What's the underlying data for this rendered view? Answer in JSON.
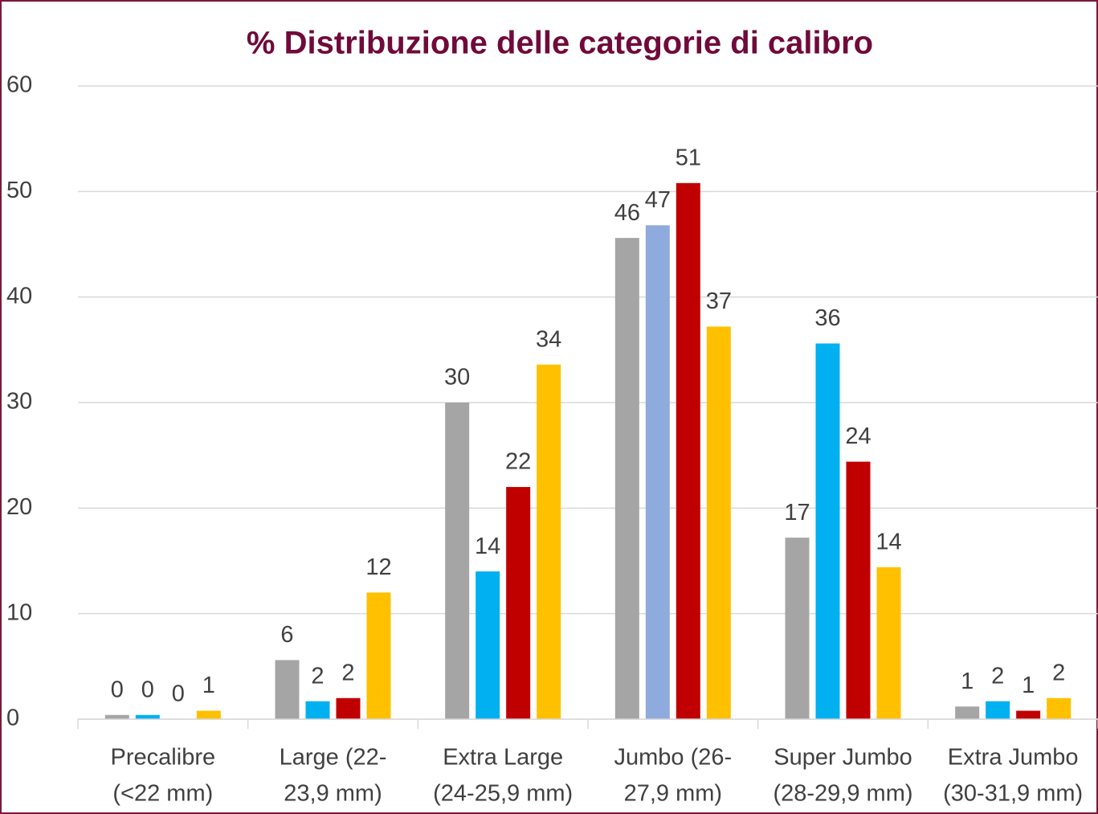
{
  "chart_data": {
    "type": "bar",
    "title": "% Distribuzione delle categorie di calibro",
    "categories": [
      [
        "Precalibre",
        "(<22 mm)"
      ],
      [
        "Large (22-",
        "23,9 mm)"
      ],
      [
        "Extra Large",
        "(24-25,9 mm)"
      ],
      [
        "Jumbo (26-",
        "27,9 mm)"
      ],
      [
        "Super Jumbo",
        "(28-29,9 mm)"
      ],
      [
        "Extra Jumbo",
        "(30-31,9 mm)"
      ]
    ],
    "series": [
      {
        "color": "#a5a5a5",
        "values": [
          0.4,
          5.6,
          30.0,
          45.6,
          17.2,
          1.2
        ],
        "value_labels": [
          "0",
          "6",
          "30",
          "46",
          "17",
          "1"
        ]
      },
      {
        "color": "#00b0f0",
        "colors": [
          "#00b0f0",
          "#00b0f0",
          "#00b0f0",
          "#8faadc",
          "#00b0f0",
          "#00b0f0"
        ],
        "values": [
          0.4,
          1.7,
          14.0,
          46.8,
          35.6,
          1.7
        ],
        "value_labels": [
          "0",
          "2",
          "14",
          "47",
          "36",
          "2"
        ]
      },
      {
        "color": "#c00000",
        "values": [
          0,
          2.0,
          22.0,
          50.8,
          24.4,
          0.8
        ],
        "value_labels": [
          "0",
          "2",
          "22",
          "51",
          "24",
          "1"
        ]
      },
      {
        "color": "#ffc000",
        "values": [
          0.8,
          12.0,
          33.6,
          37.2,
          14.4,
          2.0
        ],
        "value_labels": [
          "1",
          "12",
          "34",
          "37",
          "14",
          "2"
        ]
      }
    ],
    "ylim": [
      0,
      60
    ],
    "yticks": [
      0,
      10,
      20,
      30,
      40,
      50,
      60
    ],
    "grid": true
  }
}
